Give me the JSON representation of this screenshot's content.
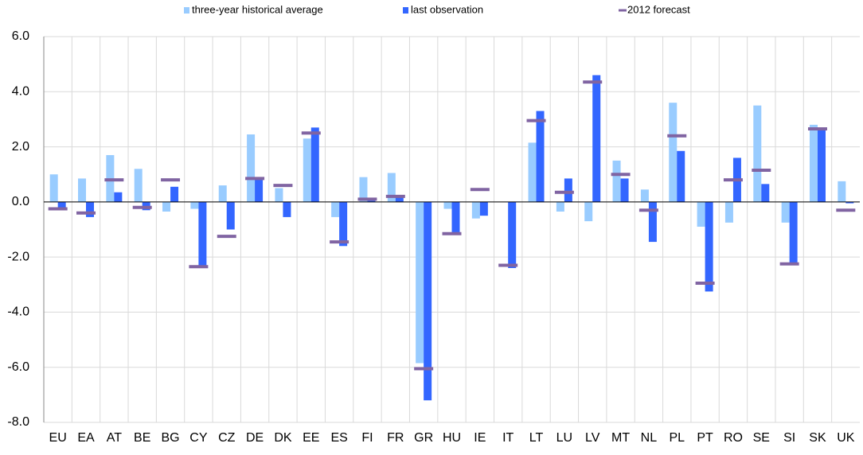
{
  "chart_data": {
    "type": "bar",
    "categories": [
      "EU",
      "EA",
      "AT",
      "BE",
      "BG",
      "CY",
      "CZ",
      "DE",
      "DK",
      "EE",
      "ES",
      "FI",
      "FR",
      "GR",
      "HU",
      "IE",
      "IT",
      "LT",
      "LU",
      "LV",
      "MT",
      "NL",
      "PL",
      "PT",
      "RO",
      "SE",
      "SI",
      "SK",
      "UK"
    ],
    "series": [
      {
        "name": "three-year historical average",
        "color": "#99ccff",
        "kind": "bar",
        "values": [
          1.0,
          0.85,
          1.7,
          1.2,
          -0.35,
          -0.25,
          0.6,
          2.45,
          0.5,
          2.3,
          -0.55,
          0.9,
          1.05,
          -5.85,
          -0.25,
          -0.6,
          0.0,
          2.15,
          -0.35,
          -0.7,
          1.5,
          0.45,
          3.6,
          -0.9,
          -0.75,
          3.5,
          -0.75,
          2.8,
          0.75
        ]
      },
      {
        "name": "last observation",
        "color": "#3366ff",
        "kind": "bar",
        "values": [
          -0.3,
          -0.55,
          0.35,
          -0.3,
          0.55,
          -2.35,
          -1.0,
          0.85,
          -0.55,
          2.7,
          -1.6,
          0.05,
          0.2,
          -7.2,
          -1.1,
          -0.5,
          -2.4,
          3.3,
          0.85,
          4.6,
          0.85,
          -1.45,
          1.85,
          -3.25,
          1.6,
          0.65,
          -2.3,
          2.6,
          -0.05
        ]
      },
      {
        "name": "2012 forecast",
        "color": "#8064a2",
        "kind": "dash",
        "values": [
          -0.25,
          -0.4,
          0.8,
          -0.2,
          0.8,
          -2.35,
          -1.25,
          0.85,
          0.6,
          2.5,
          -1.45,
          0.1,
          0.2,
          -6.05,
          -1.15,
          0.45,
          -2.3,
          2.95,
          0.35,
          4.35,
          1.0,
          -0.3,
          2.4,
          -2.95,
          0.8,
          1.15,
          -2.25,
          2.65,
          -0.3
        ]
      }
    ],
    "ylim": [
      -8,
      6
    ],
    "yticks": [
      {
        "value": -8,
        "label": "-8.0"
      },
      {
        "value": -6,
        "label": "-6.0"
      },
      {
        "value": -4,
        "label": "-4.0"
      },
      {
        "value": -2,
        "label": "-2.0"
      },
      {
        "value": 0,
        "label": "0.0"
      },
      {
        "value": 2,
        "label": "2.0"
      },
      {
        "value": 4,
        "label": "4.0"
      },
      {
        "value": 6,
        "label": "6.0"
      }
    ],
    "grid": true
  }
}
